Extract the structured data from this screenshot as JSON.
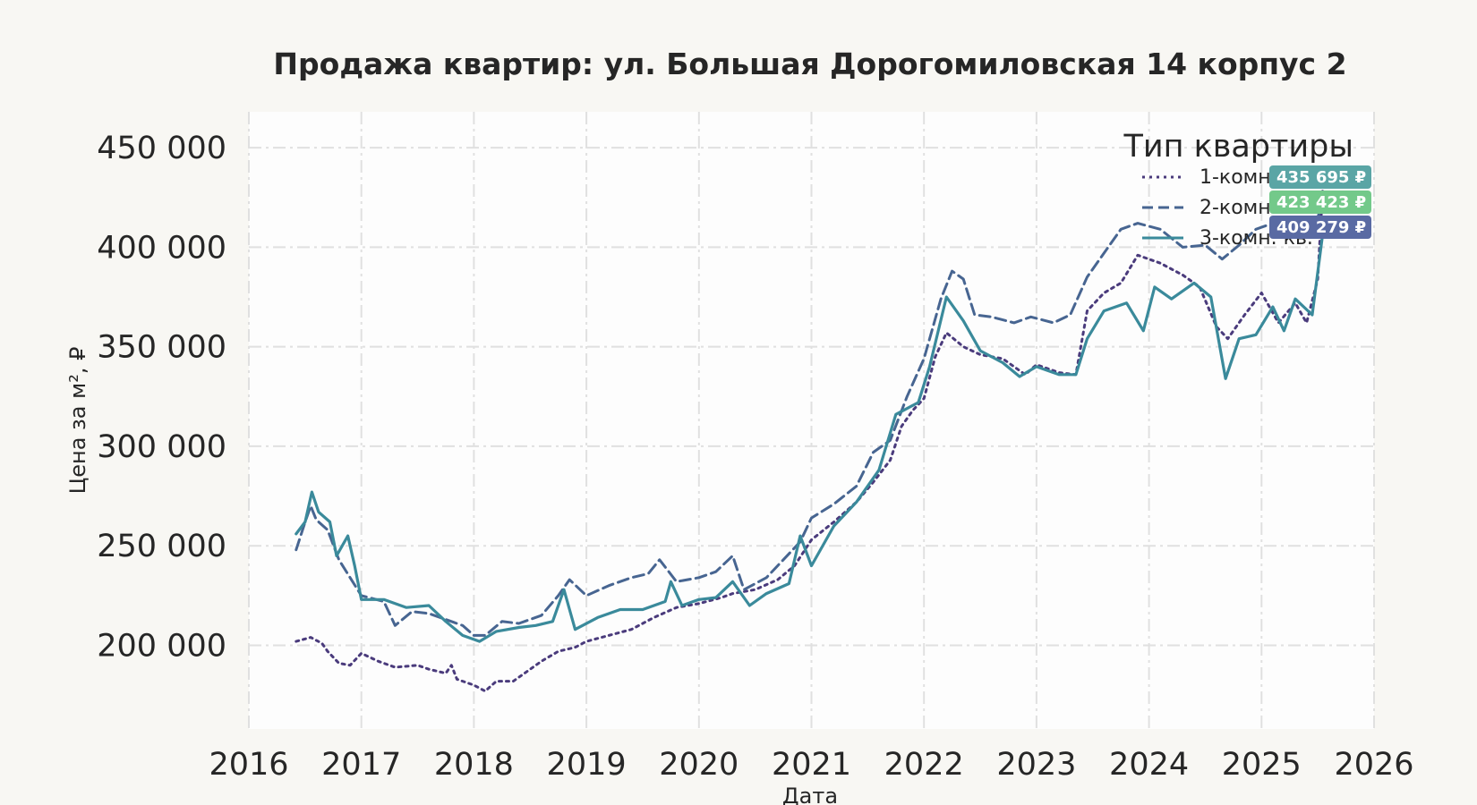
{
  "chart_data": {
    "type": "line",
    "title": "Продажа квартир: ул. Большая Дорогомиловская 14 корпус 2",
    "xlabel": "Дата",
    "ylabel": "Цена за м², ₽",
    "xlim": [
      2016,
      2026
    ],
    "ylim": [
      158000,
      468000
    ],
    "x_ticks": [
      2016,
      2017,
      2018,
      2019,
      2020,
      2021,
      2022,
      2023,
      2024,
      2025,
      2026
    ],
    "x_tick_labels": [
      "2016",
      "2017",
      "2018",
      "2019",
      "2020",
      "2021",
      "2022",
      "2023",
      "2024",
      "2025",
      "2026"
    ],
    "y_ticks": [
      200000,
      250000,
      300000,
      350000,
      400000,
      450000
    ],
    "y_tick_labels": [
      "200 000",
      "250 000",
      "300 000",
      "350 000",
      "400 000",
      "450 000"
    ],
    "grid": true,
    "legend": {
      "title": "Тип квартиры",
      "position": "top-right"
    },
    "series": [
      {
        "name": "1-комн. кв.",
        "style": "dotted",
        "color": "#4a3b7c",
        "points": [
          [
            2016.42,
            202000
          ],
          [
            2016.55,
            204000
          ],
          [
            2016.65,
            201000
          ],
          [
            2016.7,
            197000
          ],
          [
            2016.8,
            191000
          ],
          [
            2016.9,
            190000
          ],
          [
            2017.0,
            196000
          ],
          [
            2017.15,
            192000
          ],
          [
            2017.3,
            189000
          ],
          [
            2017.5,
            190000
          ],
          [
            2017.6,
            188000
          ],
          [
            2017.75,
            186000
          ],
          [
            2017.8,
            190000
          ],
          [
            2017.85,
            183000
          ],
          [
            2018.0,
            180000
          ],
          [
            2018.1,
            177000
          ],
          [
            2018.2,
            182000
          ],
          [
            2018.35,
            182000
          ],
          [
            2018.45,
            186000
          ],
          [
            2018.6,
            192000
          ],
          [
            2018.75,
            197000
          ],
          [
            2018.9,
            199000
          ],
          [
            2019.0,
            202000
          ],
          [
            2019.2,
            205000
          ],
          [
            2019.4,
            208000
          ],
          [
            2019.6,
            214000
          ],
          [
            2019.8,
            219000
          ],
          [
            2020.0,
            221000
          ],
          [
            2020.2,
            224000
          ],
          [
            2020.3,
            226000
          ],
          [
            2020.5,
            228000
          ],
          [
            2020.7,
            233000
          ],
          [
            2020.85,
            240000
          ],
          [
            2021.0,
            253000
          ],
          [
            2021.2,
            262000
          ],
          [
            2021.4,
            272000
          ],
          [
            2021.55,
            282000
          ],
          [
            2021.7,
            293000
          ],
          [
            2021.8,
            310000
          ],
          [
            2021.9,
            318000
          ],
          [
            2022.0,
            324000
          ],
          [
            2022.1,
            345000
          ],
          [
            2022.2,
            357000
          ],
          [
            2022.35,
            350000
          ],
          [
            2022.5,
            346000
          ],
          [
            2022.7,
            344000
          ],
          [
            2022.9,
            336000
          ],
          [
            2023.0,
            341000
          ],
          [
            2023.2,
            337000
          ],
          [
            2023.35,
            336000
          ],
          [
            2023.45,
            368000
          ],
          [
            2023.6,
            377000
          ],
          [
            2023.75,
            382000
          ],
          [
            2023.9,
            396000
          ],
          [
            2024.1,
            392000
          ],
          [
            2024.3,
            386000
          ],
          [
            2024.45,
            380000
          ],
          [
            2024.6,
            360000
          ],
          [
            2024.7,
            354000
          ],
          [
            2024.85,
            366000
          ],
          [
            2025.0,
            377000
          ],
          [
            2025.15,
            362000
          ],
          [
            2025.3,
            372000
          ],
          [
            2025.4,
            362000
          ],
          [
            2025.5,
            384000
          ],
          [
            2025.55,
            435695
          ]
        ]
      },
      {
        "name": "2-комн. кв.",
        "style": "dashed",
        "color": "#476591",
        "points": [
          [
            2016.42,
            248000
          ],
          [
            2016.5,
            262000
          ],
          [
            2016.55,
            270000
          ],
          [
            2016.6,
            263000
          ],
          [
            2016.7,
            258000
          ],
          [
            2016.8,
            243000
          ],
          [
            2016.9,
            234000
          ],
          [
            2017.0,
            225000
          ],
          [
            2017.2,
            222000
          ],
          [
            2017.3,
            210000
          ],
          [
            2017.45,
            217000
          ],
          [
            2017.6,
            216000
          ],
          [
            2017.75,
            213000
          ],
          [
            2017.9,
            210000
          ],
          [
            2018.0,
            205000
          ],
          [
            2018.1,
            205000
          ],
          [
            2018.25,
            212000
          ],
          [
            2018.4,
            211000
          ],
          [
            2018.6,
            215000
          ],
          [
            2018.75,
            225000
          ],
          [
            2018.85,
            233000
          ],
          [
            2019.0,
            225000
          ],
          [
            2019.2,
            230000
          ],
          [
            2019.4,
            234000
          ],
          [
            2019.55,
            236000
          ],
          [
            2019.65,
            243000
          ],
          [
            2019.8,
            232000
          ],
          [
            2020.0,
            234000
          ],
          [
            2020.15,
            237000
          ],
          [
            2020.3,
            245000
          ],
          [
            2020.4,
            228000
          ],
          [
            2020.6,
            234000
          ],
          [
            2020.75,
            243000
          ],
          [
            2020.9,
            252000
          ],
          [
            2021.0,
            264000
          ],
          [
            2021.2,
            271000
          ],
          [
            2021.4,
            280000
          ],
          [
            2021.55,
            297000
          ],
          [
            2021.7,
            303000
          ],
          [
            2021.85,
            325000
          ],
          [
            2022.0,
            344000
          ],
          [
            2022.15,
            374000
          ],
          [
            2022.25,
            388000
          ],
          [
            2022.35,
            384000
          ],
          [
            2022.45,
            366000
          ],
          [
            2022.6,
            365000
          ],
          [
            2022.8,
            362000
          ],
          [
            2022.95,
            365000
          ],
          [
            2023.15,
            362000
          ],
          [
            2023.3,
            366000
          ],
          [
            2023.45,
            385000
          ],
          [
            2023.6,
            397000
          ],
          [
            2023.75,
            409000
          ],
          [
            2023.9,
            412000
          ],
          [
            2024.1,
            409000
          ],
          [
            2024.3,
            400000
          ],
          [
            2024.5,
            401000
          ],
          [
            2024.65,
            394000
          ],
          [
            2024.8,
            401000
          ],
          [
            2024.95,
            409000
          ],
          [
            2025.15,
            413000
          ],
          [
            2025.35,
            408000
          ],
          [
            2025.5,
            415000
          ],
          [
            2025.55,
            423423
          ]
        ]
      },
      {
        "name": "3-комн. кв.",
        "style": "solid",
        "color": "#3a8a9b",
        "points": [
          [
            2016.42,
            256000
          ],
          [
            2016.5,
            262000
          ],
          [
            2016.56,
            277000
          ],
          [
            2016.62,
            267000
          ],
          [
            2016.72,
            262000
          ],
          [
            2016.78,
            245000
          ],
          [
            2016.88,
            255000
          ],
          [
            2016.94,
            240000
          ],
          [
            2017.0,
            223000
          ],
          [
            2017.2,
            223000
          ],
          [
            2017.4,
            219000
          ],
          [
            2017.6,
            220000
          ],
          [
            2017.75,
            212000
          ],
          [
            2017.9,
            205000
          ],
          [
            2018.05,
            202000
          ],
          [
            2018.2,
            207000
          ],
          [
            2018.4,
            209000
          ],
          [
            2018.55,
            210000
          ],
          [
            2018.7,
            212000
          ],
          [
            2018.8,
            228000
          ],
          [
            2018.9,
            208000
          ],
          [
            2019.1,
            214000
          ],
          [
            2019.3,
            218000
          ],
          [
            2019.5,
            218000
          ],
          [
            2019.7,
            222000
          ],
          [
            2019.75,
            232000
          ],
          [
            2019.85,
            220000
          ],
          [
            2020.0,
            223000
          ],
          [
            2020.15,
            224000
          ],
          [
            2020.3,
            232000
          ],
          [
            2020.45,
            220000
          ],
          [
            2020.6,
            226000
          ],
          [
            2020.8,
            231000
          ],
          [
            2020.9,
            255000
          ],
          [
            2021.0,
            240000
          ],
          [
            2021.2,
            260000
          ],
          [
            2021.4,
            272000
          ],
          [
            2021.6,
            288000
          ],
          [
            2021.75,
            316000
          ],
          [
            2021.95,
            322000
          ],
          [
            2022.05,
            340000
          ],
          [
            2022.2,
            375000
          ],
          [
            2022.35,
            363000
          ],
          [
            2022.5,
            348000
          ],
          [
            2022.7,
            342000
          ],
          [
            2022.85,
            335000
          ],
          [
            2023.0,
            340000
          ],
          [
            2023.2,
            336000
          ],
          [
            2023.35,
            336000
          ],
          [
            2023.45,
            354000
          ],
          [
            2023.6,
            368000
          ],
          [
            2023.8,
            372000
          ],
          [
            2023.95,
            358000
          ],
          [
            2024.05,
            380000
          ],
          [
            2024.2,
            374000
          ],
          [
            2024.4,
            382000
          ],
          [
            2024.55,
            375000
          ],
          [
            2024.68,
            334000
          ],
          [
            2024.8,
            354000
          ],
          [
            2024.95,
            356000
          ],
          [
            2025.1,
            370000
          ],
          [
            2025.2,
            358000
          ],
          [
            2025.3,
            374000
          ],
          [
            2025.45,
            366000
          ],
          [
            2025.55,
            409279
          ]
        ]
      }
    ],
    "end_labels": [
      {
        "text": "435 695 ₽",
        "color": "#5aa5a5"
      },
      {
        "text": "423 423 ₽",
        "color": "#73c98a"
      },
      {
        "text": "409 279 ₽",
        "color": "#596aa3"
      }
    ]
  }
}
